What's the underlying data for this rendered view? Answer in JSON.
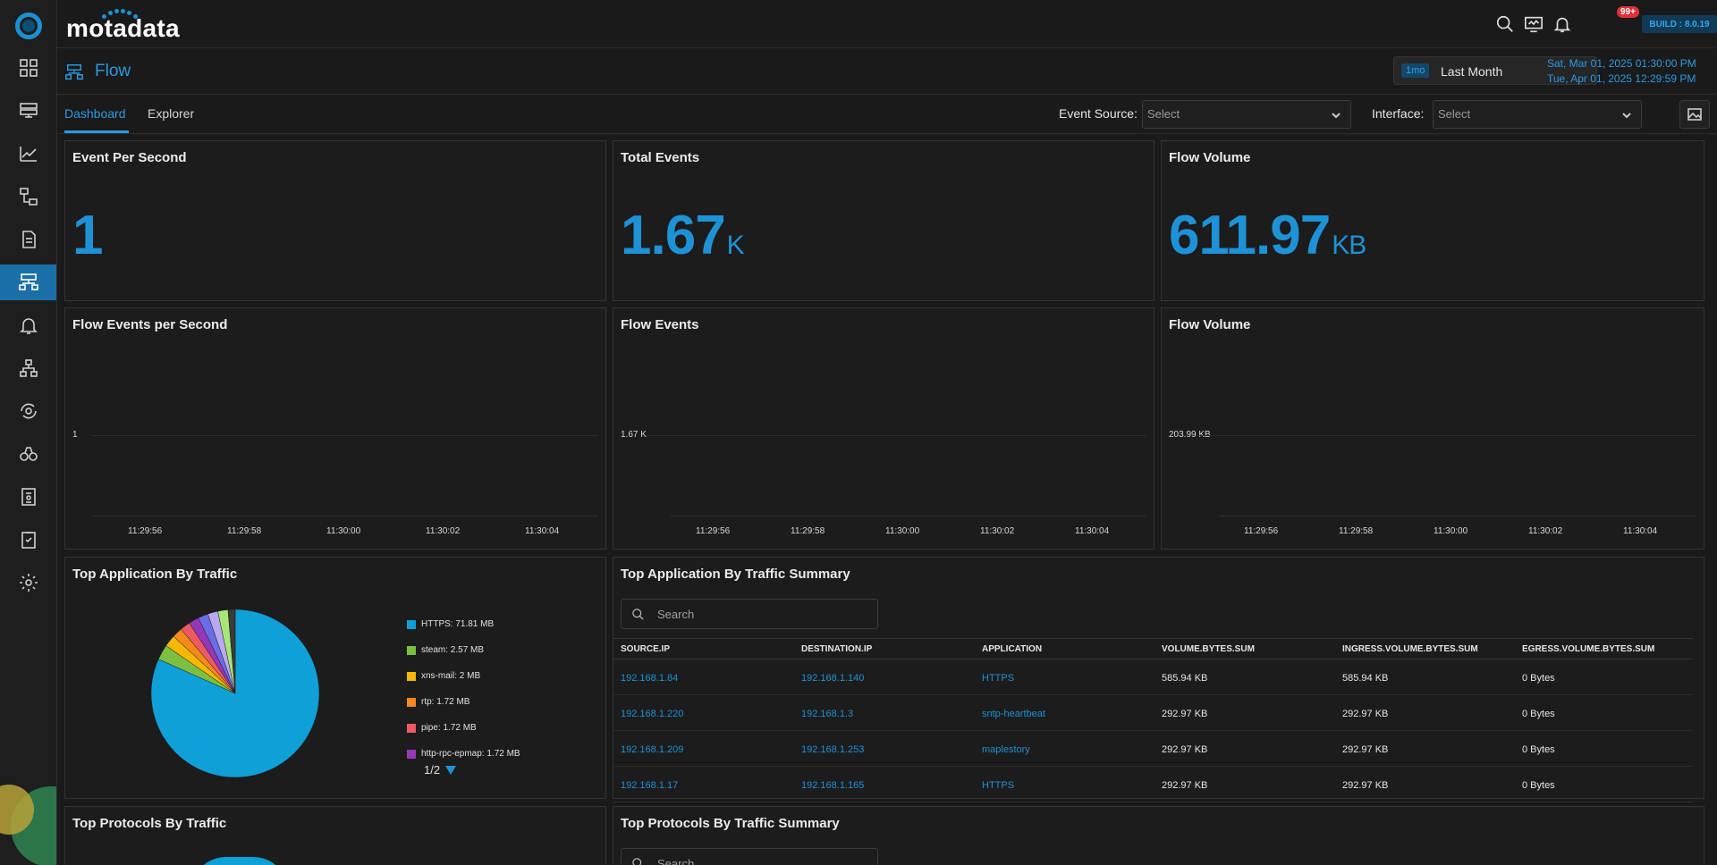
{
  "app": {
    "brand": "motadata",
    "build_label": "BUILD : 8.0.19",
    "notification_count": "99+",
    "accent": "#1e92d6"
  },
  "sidebar": {
    "items": [
      {
        "name": "dashboard-icon"
      },
      {
        "name": "monitors-icon"
      },
      {
        "name": "metrics-icon"
      },
      {
        "name": "topology-icon"
      },
      {
        "name": "logs-icon"
      },
      {
        "name": "flow-icon",
        "active": true
      },
      {
        "name": "alerts-icon"
      },
      {
        "name": "network-icon"
      },
      {
        "name": "automation-icon"
      },
      {
        "name": "explorer-icon"
      },
      {
        "name": "reports-icon"
      },
      {
        "name": "compliance-icon"
      },
      {
        "name": "settings-icon"
      }
    ]
  },
  "page": {
    "title": "Flow",
    "range_tag": "1mo",
    "range_label": "Last Month",
    "range_from": "Sat, Mar 01, 2025 01:30:00 PM",
    "range_to": "Tue, Apr 01, 2025 12:29:59 PM"
  },
  "tabs": {
    "dashboard": "Dashboard",
    "explorer": "Explorer"
  },
  "filters": {
    "event_source_label": "Event Source:",
    "event_source_value": "Select",
    "interface_label": "Interface:",
    "interface_value": "Select"
  },
  "kpis": {
    "eps": {
      "title": "Event Per Second",
      "value": "1",
      "unit": ""
    },
    "total_events": {
      "title": "Total Events",
      "value": "1.67",
      "unit": "K"
    },
    "flow_volume": {
      "title": "Flow Volume",
      "value": "611.97",
      "unit": "KB"
    }
  },
  "chart_data": [
    {
      "type": "line",
      "title": "Flow Events per Second",
      "x": [
        "11:29:56",
        "11:29:58",
        "11:30:00",
        "11:30:02",
        "11:30:04"
      ],
      "y_tick": "1",
      "series": []
    },
    {
      "type": "line",
      "title": "Flow Events",
      "x": [
        "11:29:56",
        "11:29:58",
        "11:30:00",
        "11:30:02",
        "11:30:04"
      ],
      "y_tick": "1.67 K",
      "series": []
    },
    {
      "type": "line",
      "title": "Flow Volume",
      "x": [
        "11:29:56",
        "11:29:58",
        "11:30:00",
        "11:30:02",
        "11:30:04"
      ],
      "y_tick": "203.99 KB",
      "series": []
    },
    {
      "type": "pie",
      "title": "Top Application By Traffic",
      "slices": [
        {
          "label": "HTTPS: 71.81 MB",
          "value": 71.81,
          "color": "#0fa0d8"
        },
        {
          "label": "steam: 2.57 MB",
          "value": 2.57,
          "color": "#7cc043"
        },
        {
          "label": "xns-mail: 2 MB",
          "value": 2.0,
          "color": "#f5b800"
        },
        {
          "label": "rtp: 1.72 MB",
          "value": 1.72,
          "color": "#f28a1c"
        },
        {
          "label": "pipe: 1.72 MB",
          "value": 1.72,
          "color": "#ee5a62"
        },
        {
          "label": "http-rpc-epmap: 1.72 MB",
          "value": 1.72,
          "color": "#9437b8"
        },
        {
          "label": "",
          "value": 1.72,
          "color": "#6b6de6",
          "hidden": true
        },
        {
          "label": "",
          "value": 1.72,
          "color": "#b9a9f2",
          "hidden": true
        },
        {
          "label": "",
          "value": 1.72,
          "color": "#a6e878",
          "hidden": true
        },
        {
          "label": "",
          "value": 1.2,
          "color": "#3a3a3a",
          "hidden": true
        }
      ],
      "pager": "1/2"
    }
  ],
  "summary_table": {
    "title": "Top Application By Traffic Summary",
    "search_placeholder": "Search",
    "columns": [
      "SOURCE.IP",
      "DESTINATION.IP",
      "APPLICATION",
      "VOLUME.BYTES.SUM",
      "INGRESS.VOLUME.BYTES.SUM",
      "EGRESS.VOLUME.BYTES.SUM"
    ],
    "rows": [
      [
        "192.168.1.84",
        "192.168.1.140",
        "HTTPS",
        "585.94 KB",
        "585.94 KB",
        "0 Bytes"
      ],
      [
        "192.168.1.220",
        "192.168.1.3",
        "sntp-heartbeat",
        "292.97 KB",
        "292.97 KB",
        "0 Bytes"
      ],
      [
        "192.168.1.209",
        "192.168.1.253",
        "maplestory",
        "292.97 KB",
        "292.97 KB",
        "0 Bytes"
      ],
      [
        "192.168.1.17",
        "192.168.1.165",
        "HTTPS",
        "292.97 KB",
        "292.97 KB",
        "0 Bytes"
      ]
    ]
  },
  "bottom": {
    "protocols_title": "Top Protocols By Traffic",
    "protocols_summary_title": "Top Protocols By Traffic Summary",
    "search_placeholder": "Search"
  }
}
